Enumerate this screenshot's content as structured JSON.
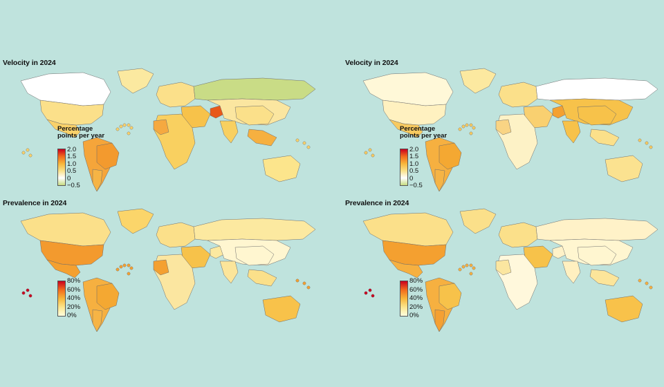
{
  "panels": [
    {
      "id": "velocity-left",
      "title": "Velocity in 2024",
      "legend": {
        "title": "Percentage points per year",
        "ticks": [
          "2.0",
          "1.5",
          "1.0",
          "0.5",
          "0",
          "−0.5"
        ],
        "gradient": [
          "#c9001f",
          "#f26b1d",
          "#f7b63a",
          "#f9e18a",
          "#ffffff",
          "#c7db82"
        ]
      }
    },
    {
      "id": "velocity-right",
      "title": "Velocity in 2024",
      "legend": {
        "title": "Percentage points per year",
        "ticks": [
          "2.0",
          "1.5",
          "1.0",
          "0.5",
          "0",
          "−0.5"
        ],
        "gradient": [
          "#c9001f",
          "#f26b1d",
          "#f7b63a",
          "#f9e18a",
          "#ffffff",
          "#c7db82"
        ]
      }
    },
    {
      "id": "prevalence-left",
      "title": "Prevalence in 2024",
      "legend": {
        "title": "",
        "ticks": [
          "80%",
          "60%",
          "40%",
          "20%",
          "0%"
        ],
        "gradient": [
          "#c9001f",
          "#f26b1d",
          "#f7b63a",
          "#fbe58e",
          "#ffffdf"
        ]
      }
    },
    {
      "id": "prevalence-right",
      "title": "Prevalence in 2024",
      "legend": {
        "title": "",
        "ticks": [
          "80%",
          "60%",
          "40%",
          "20%",
          "0%"
        ],
        "gradient": [
          "#c9001f",
          "#f26b1d",
          "#f7b63a",
          "#fbe58e",
          "#ffffdf"
        ]
      }
    }
  ],
  "colors": {
    "background": "#bfe3dd",
    "border": "#6b6b6b",
    "ocean": "#bfe3dd"
  },
  "map_fills": {
    "velocity-left": {
      "north_america": "#ffffff",
      "greenland": "#fbe9a0",
      "usa": "#fbe08a",
      "mexico": "#f9d16a",
      "south_america": "#f5a53a",
      "brazil": "#f39a2e",
      "argentina": "#f6b445",
      "europe": "#fbe08a",
      "russia": "#c9dc86",
      "middle_east": "#f7c24a",
      "afghanistan": "#e8581a",
      "africa": "#f9d060",
      "west_africa": "#f5a940",
      "asia": "#fbe6a0",
      "china": "#fbe08a",
      "india": "#f8d060",
      "se_asia": "#f6b040",
      "australia": "#fce58c"
    },
    "velocity-right": {
      "north_america": "#fff8d8",
      "greenland": "#fce9a0",
      "usa": "#fff1c0",
      "mexico": "#f7ca60",
      "south_america": "#f6b040",
      "brazil": "#f4a832",
      "argentina": "#f6b445",
      "europe": "#fbe08a",
      "russia": "#ffffff",
      "middle_east": "#f9d070",
      "afghanistan": "#f4a030",
      "africa": "#fdf2c6",
      "west_africa": "#f9d484",
      "asia": "#f7c24a",
      "china": "#f7c24a",
      "india": "#f7c24a",
      "se_asia": "#fbe08a",
      "australia": "#fbe290"
    },
    "prevalence-left": {
      "north_america": "#fbe08a",
      "greenland": "#fbd56a",
      "usa": "#f39a2e",
      "mexico": "#f4a030",
      "south_america": "#f6b040",
      "brazil": "#f4a832",
      "argentina": "#f6b445",
      "europe": "#fbe08a",
      "russia": "#fce9a0",
      "middle_east": "#f7c24a",
      "afghanistan": "#fce9a0",
      "africa": "#fbe6a0",
      "west_africa": "#f4a030",
      "asia": "#fff6d0",
      "china": "#fff6d0",
      "india": "#fce59a",
      "se_asia": "#fbe08a",
      "australia": "#f8c24a"
    },
    "prevalence-right": {
      "north_america": "#fbe08a",
      "greenland": "#fbe08a",
      "usa": "#f4a030",
      "mexico": "#f6b040",
      "south_america": "#f6b040",
      "brazil": "#f7c24a",
      "argentina": "#f5a032",
      "europe": "#fbe08a",
      "russia": "#fff2c8",
      "middle_east": "#f7c24a",
      "afghanistan": "#fff2c8",
      "africa": "#fff8dc",
      "west_africa": "#fbe6a0",
      "asia": "#fff6d0",
      "china": "#fff6d0",
      "india": "#fff0c0",
      "se_asia": "#fce59a",
      "australia": "#f8c24a"
    }
  }
}
